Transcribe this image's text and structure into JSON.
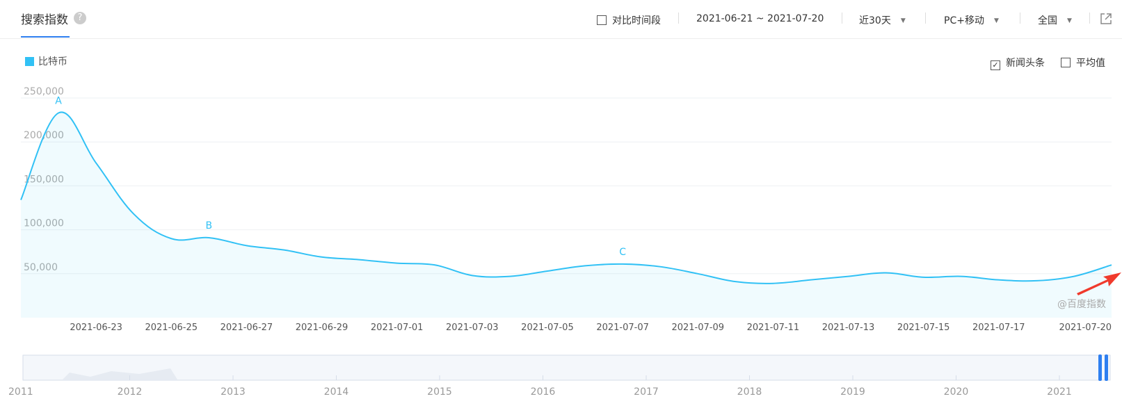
{
  "header": {
    "title": "搜索指数",
    "help": "?",
    "compare": "对比时间段",
    "date_range": "2021-06-21 ~ 2021-07-20",
    "period": "近30天",
    "device": "PC+移动",
    "region": "全国"
  },
  "options": {
    "news": "新闻头条",
    "average": "平均值"
  },
  "chart_data": {
    "type": "line",
    "fill_area": true,
    "categories": [
      null,
      null,
      "2021-06-23",
      null,
      "2021-06-25",
      null,
      "2021-06-27",
      null,
      "2021-06-29",
      null,
      "2021-07-01",
      null,
      "2021-07-03",
      null,
      "2021-07-05",
      null,
      "2021-07-07",
      null,
      "2021-07-09",
      null,
      "2021-07-11",
      null,
      "2021-07-13",
      null,
      "2021-07-15",
      null,
      "2021-07-17",
      null,
      null,
      "2021-07-20"
    ],
    "series": [
      {
        "name": "比特币",
        "color": "#31c1f5",
        "values": [
          134000,
          233000,
          176000,
          118000,
          90000,
          91000,
          82000,
          77000,
          69000,
          66000,
          62000,
          60000,
          48000,
          47000,
          53000,
          59000,
          61000,
          58000,
          50000,
          41000,
          39000,
          43000,
          47000,
          51000,
          46000,
          47000,
          43000,
          42000,
          47000,
          60000
        ]
      }
    ],
    "ylim": [
      0,
      250000
    ],
    "yticks": [
      {
        "value": 50000,
        "label": "50,000"
      },
      {
        "value": 100000,
        "label": "100,000"
      },
      {
        "value": 150000,
        "label": "150,000"
      },
      {
        "value": 200000,
        "label": "200,000"
      },
      {
        "value": 250000,
        "label": "250,000"
      }
    ],
    "grid": true,
    "annotations": [
      "A",
      "B",
      "C"
    ],
    "watermark": "@百度指数"
  },
  "slider": {
    "years": [
      "2011",
      "2012",
      "2013",
      "2014",
      "2015",
      "2016",
      "2017",
      "2018",
      "2019",
      "2020",
      "2021"
    ]
  }
}
